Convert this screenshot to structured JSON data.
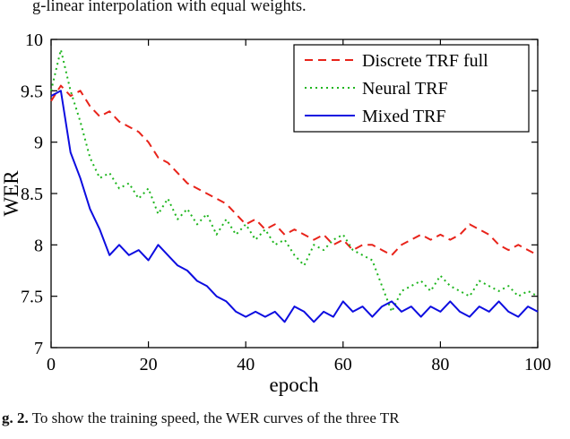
{
  "texts": {
    "top_line": "g-linear interpolation with equal weights.",
    "caption_bold": "g. 2.",
    "caption_rest": " To show the training speed, the WER curves of the three TR"
  },
  "chart_data": {
    "type": "line",
    "title": "",
    "xlabel": "epoch",
    "ylabel": "WER",
    "xlim": [
      0,
      100
    ],
    "ylim": [
      7,
      10
    ],
    "xticks": [
      0,
      20,
      40,
      60,
      80,
      100
    ],
    "yticks": [
      7,
      7.5,
      8,
      8.5,
      9,
      9.5,
      10
    ],
    "grid": false,
    "legend_position": "top-right",
    "x": [
      0,
      2,
      4,
      6,
      8,
      10,
      12,
      14,
      16,
      18,
      20,
      22,
      24,
      26,
      28,
      30,
      32,
      34,
      36,
      38,
      40,
      42,
      44,
      46,
      48,
      50,
      52,
      54,
      56,
      58,
      60,
      62,
      64,
      66,
      68,
      70,
      72,
      74,
      76,
      78,
      80,
      82,
      84,
      86,
      88,
      90,
      92,
      94,
      96,
      98,
      100
    ],
    "series": [
      {
        "name": "Discrete TRF full",
        "color": "#e8231a",
        "style": "dashed",
        "values": [
          9.4,
          9.55,
          9.45,
          9.5,
          9.35,
          9.25,
          9.3,
          9.2,
          9.15,
          9.1,
          9.0,
          8.85,
          8.8,
          8.7,
          8.6,
          8.55,
          8.5,
          8.45,
          8.4,
          8.3,
          8.2,
          8.25,
          8.15,
          8.2,
          8.1,
          8.15,
          8.1,
          8.05,
          8.1,
          8.0,
          8.05,
          7.95,
          8.0,
          8.0,
          7.95,
          7.9,
          8.0,
          8.05,
          8.1,
          8.05,
          8.1,
          8.05,
          8.1,
          8.2,
          8.15,
          8.1,
          8.0,
          7.95,
          8.0,
          7.95,
          7.9
        ]
      },
      {
        "name": "Neural TRF",
        "color": "#1db51d",
        "style": "dotted",
        "values": [
          9.5,
          9.9,
          9.5,
          9.2,
          8.85,
          8.65,
          8.7,
          8.55,
          8.6,
          8.45,
          8.55,
          8.3,
          8.45,
          8.25,
          8.35,
          8.2,
          8.3,
          8.1,
          8.25,
          8.1,
          8.2,
          8.05,
          8.15,
          8.0,
          8.05,
          7.9,
          7.8,
          8.0,
          7.95,
          8.05,
          8.1,
          7.95,
          7.9,
          7.85,
          7.6,
          7.35,
          7.55,
          7.6,
          7.65,
          7.55,
          7.7,
          7.6,
          7.55,
          7.5,
          7.65,
          7.6,
          7.55,
          7.6,
          7.5,
          7.55,
          7.5
        ]
      },
      {
        "name": "Mixed TRF",
        "color": "#0d0de0",
        "style": "solid",
        "values": [
          9.45,
          9.5,
          8.9,
          8.65,
          8.35,
          8.15,
          7.9,
          8.0,
          7.9,
          7.95,
          7.85,
          8.0,
          7.9,
          7.8,
          7.75,
          7.65,
          7.6,
          7.5,
          7.45,
          7.35,
          7.3,
          7.35,
          7.3,
          7.35,
          7.25,
          7.4,
          7.35,
          7.25,
          7.35,
          7.3,
          7.45,
          7.35,
          7.4,
          7.3,
          7.4,
          7.45,
          7.35,
          7.4,
          7.3,
          7.4,
          7.35,
          7.45,
          7.35,
          7.3,
          7.4,
          7.35,
          7.45,
          7.35,
          7.3,
          7.4,
          7.35
        ]
      }
    ]
  }
}
